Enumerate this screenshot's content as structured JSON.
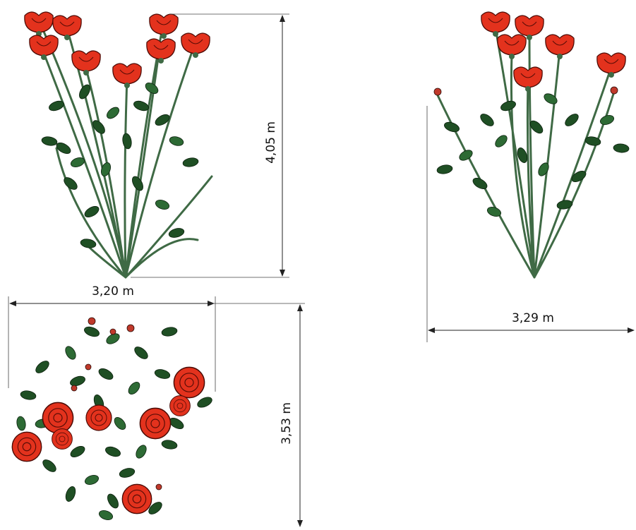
{
  "labels": [
    "4,05 m",
    "3,20 m",
    "3,53 m",
    "3,29 m"
  ]
}
